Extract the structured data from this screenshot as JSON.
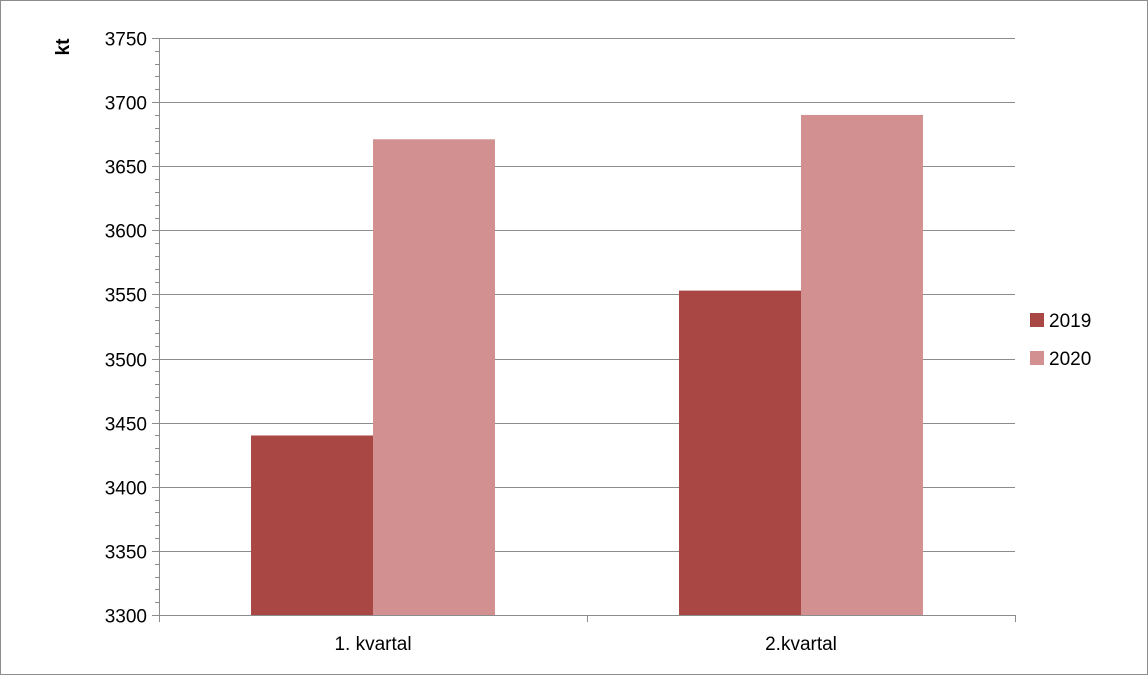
{
  "chart_data": {
    "type": "bar",
    "title": "",
    "xlabel": "",
    "ylabel": "kt",
    "categories": [
      "1. kvartal",
      "2.kvartal"
    ],
    "series": [
      {
        "name": "2019",
        "values": [
          3440,
          3553
        ],
        "color": "#A94744"
      },
      {
        "name": "2020",
        "values": [
          3671,
          3690
        ],
        "color": "#D29090"
      }
    ],
    "ylim": [
      3300,
      3750
    ],
    "yticks": [
      3300,
      3350,
      3400,
      3450,
      3500,
      3550,
      3600,
      3650,
      3700,
      3750
    ],
    "grid": true,
    "legend": "right",
    "gridline_color": "#8c8c8c"
  }
}
